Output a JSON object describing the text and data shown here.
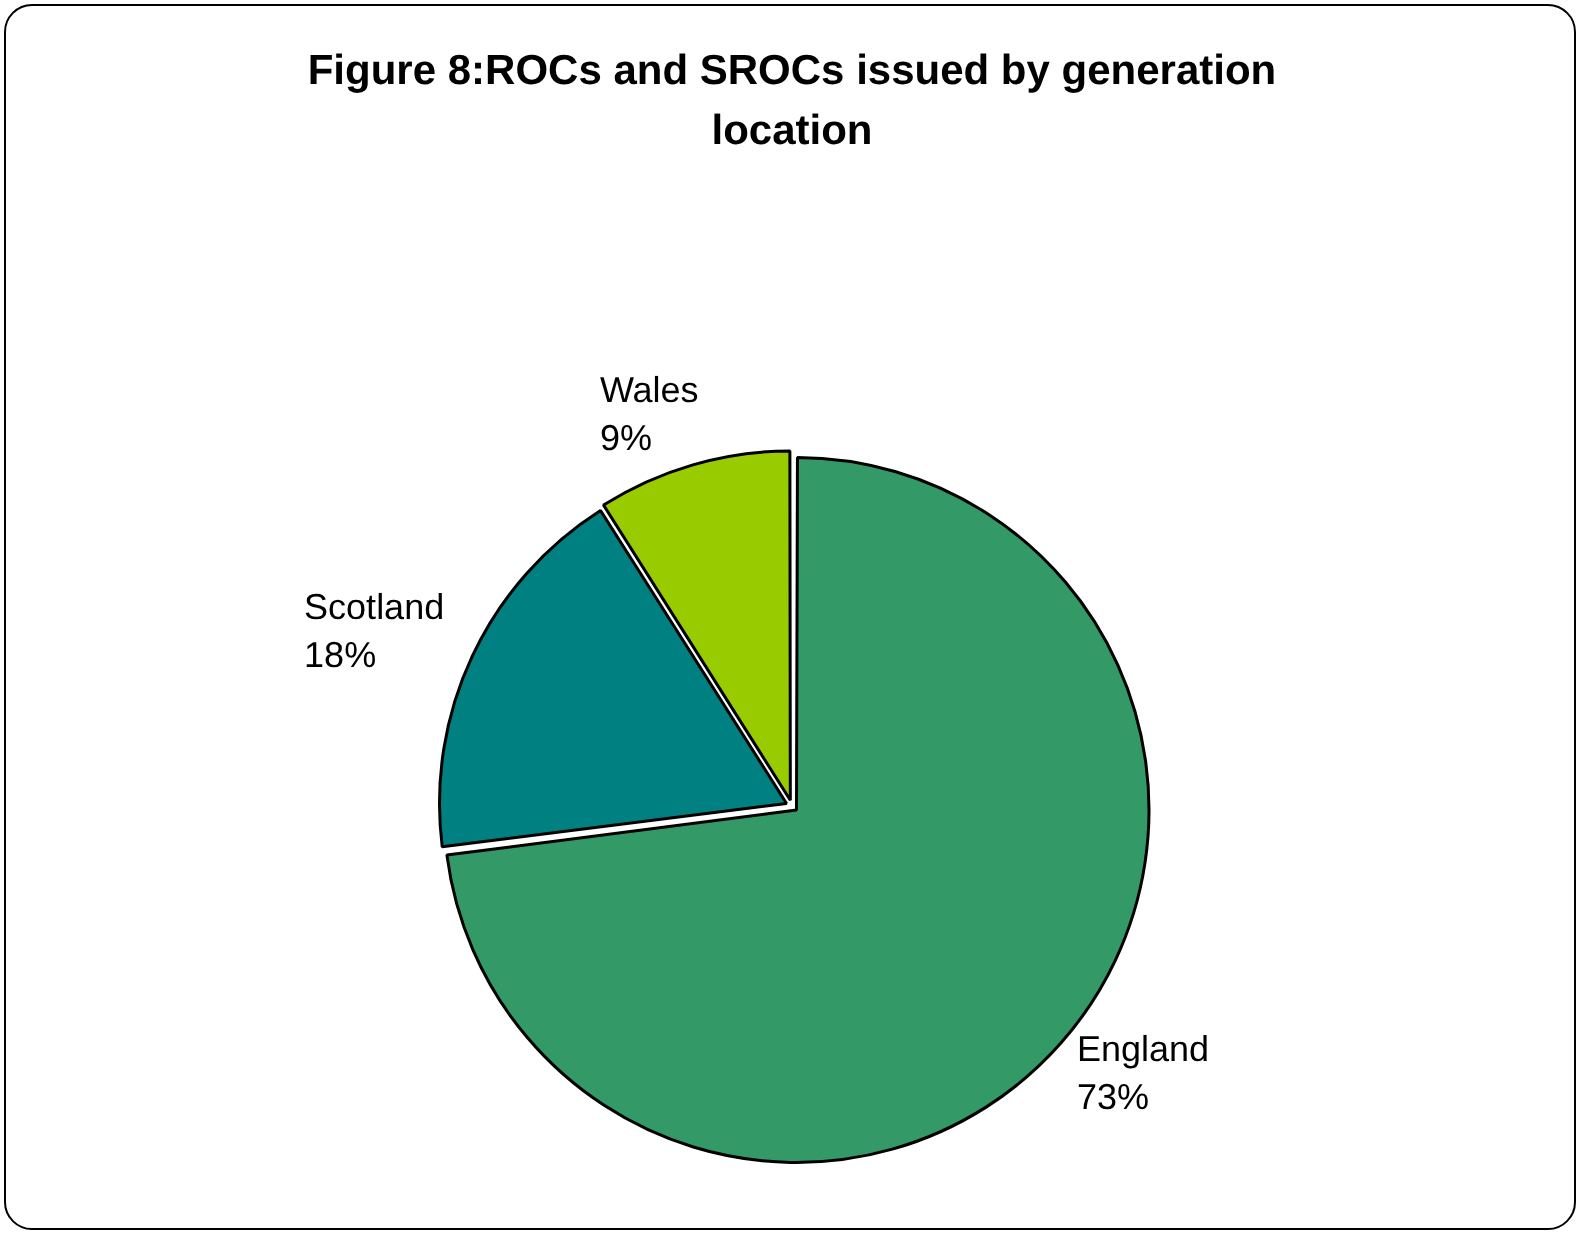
{
  "chart_data": {
    "type": "pie",
    "title": "Figure 8:ROCs and SROCs issued by generation location",
    "categories": [
      "England",
      "Scotland",
      "Wales"
    ],
    "values": [
      73,
      18,
      9
    ],
    "value_labels": [
      "73%",
      "18%",
      "9%"
    ],
    "colors": [
      "#339966",
      "#008080",
      "#99cc00"
    ],
    "legend": false
  }
}
